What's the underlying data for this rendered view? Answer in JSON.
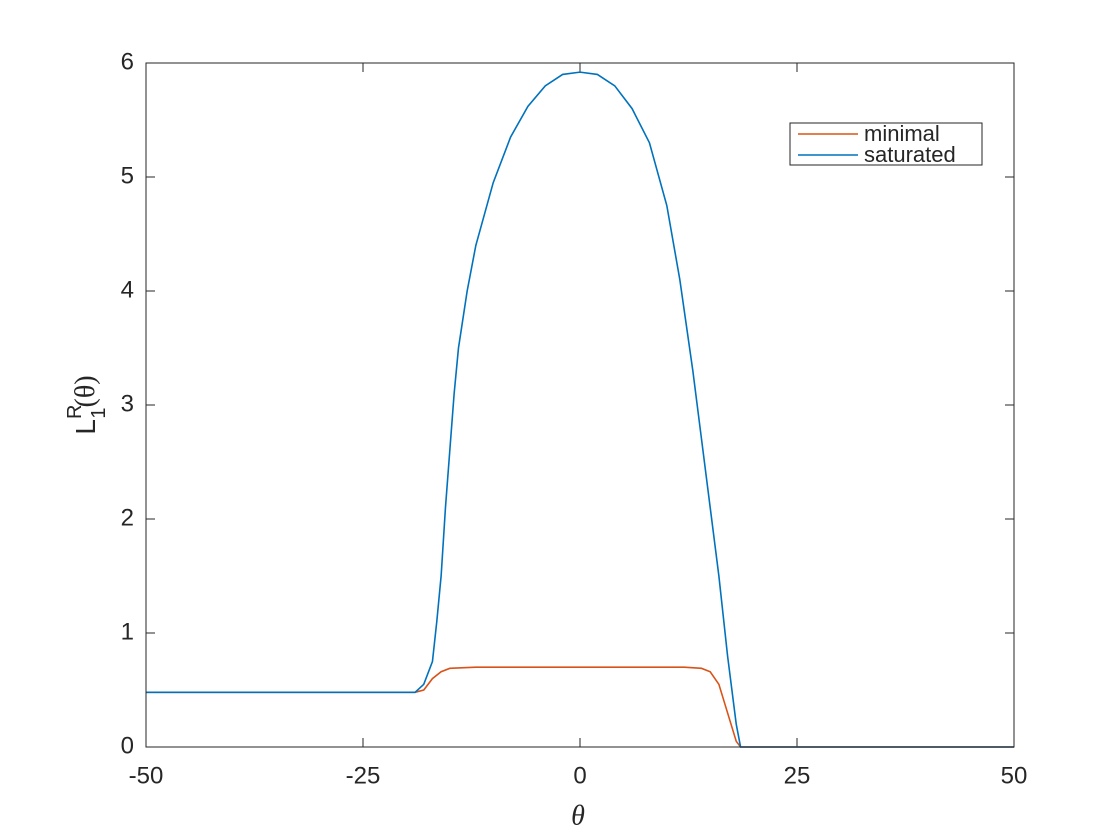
{
  "chart_data": {
    "type": "line",
    "xlabel": "θ",
    "ylabel": {
      "base": "L",
      "sub": "1",
      "sup": "R",
      "rest": "(θ)"
    },
    "xlim": [
      -50,
      50
    ],
    "xticks": [
      -50,
      -25,
      0,
      25,
      50
    ],
    "ylim": [
      0,
      6
    ],
    "yticks": [
      0,
      1,
      2,
      3,
      4,
      5,
      6
    ],
    "legend": "top-right",
    "series": [
      {
        "name": "minimal",
        "color": "#d95319",
        "x": [
          -50,
          -19,
          -18,
          -17,
          -16,
          -15,
          -12,
          0,
          12,
          14,
          15,
          16,
          17,
          18,
          18.5,
          50
        ],
        "values": [
          0.48,
          0.48,
          0.5,
          0.6,
          0.66,
          0.69,
          0.7,
          0.7,
          0.7,
          0.69,
          0.66,
          0.55,
          0.3,
          0.05,
          0,
          0
        ]
      },
      {
        "name": "saturated",
        "color": "#0072bd",
        "x": [
          -50,
          -19,
          -18,
          -17,
          -16.5,
          -16,
          -15.5,
          -15,
          -14.5,
          -14,
          -13,
          -12,
          -10,
          -8,
          -6,
          -4,
          -2,
          0,
          2,
          4,
          6,
          8,
          10,
          11.5,
          13,
          14,
          15,
          16,
          17,
          18,
          18.5,
          50
        ],
        "values": [
          0.48,
          0.48,
          0.55,
          0.75,
          1.1,
          1.5,
          2.1,
          2.6,
          3.1,
          3.5,
          4.0,
          4.4,
          4.95,
          5.35,
          5.62,
          5.8,
          5.9,
          5.92,
          5.9,
          5.8,
          5.6,
          5.3,
          4.75,
          4.1,
          3.3,
          2.7,
          2.1,
          1.5,
          0.8,
          0.2,
          0,
          0
        ]
      }
    ]
  }
}
